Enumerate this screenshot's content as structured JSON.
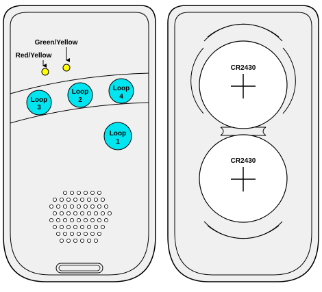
{
  "colors": {
    "background": "#ffffff",
    "body": "#f0f0f0",
    "outline": "#000000",
    "button": "#00e5f0",
    "led": "#ffff00"
  },
  "front": {
    "leds": [
      {
        "label": "Red/Yellow"
      },
      {
        "label": "Green/Yellow"
      }
    ],
    "buttons": [
      {
        "id": "loop-3",
        "line1": "Loop",
        "line2": "3"
      },
      {
        "id": "loop-2",
        "line1": "Loop",
        "line2": "2"
      },
      {
        "id": "loop-4",
        "line1": "Loop",
        "line2": "4"
      },
      {
        "id": "loop-1",
        "line1": "Loop",
        "line2": "1"
      }
    ],
    "speaker_icon": "speaker-grille-icon"
  },
  "back": {
    "batteries": [
      {
        "label": "CR2430"
      },
      {
        "label": "CR2430"
      }
    ]
  }
}
